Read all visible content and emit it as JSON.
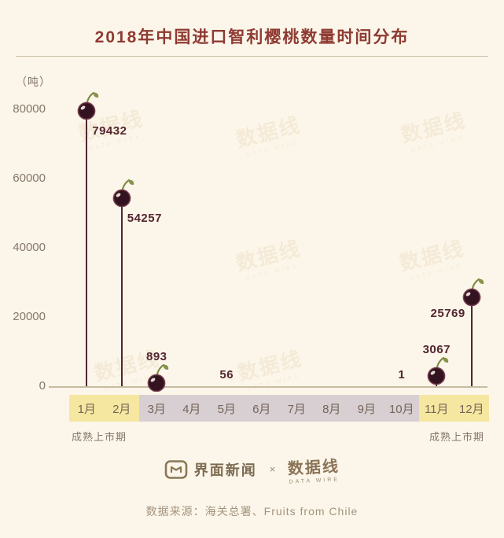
{
  "title": "2018年中国进口智利樱桃数量时间分布",
  "chart_data": {
    "type": "lollipop",
    "title": "2018年中国进口智利樱桃数量时间分布",
    "unit_label": "（吨）",
    "ylabel": "（吨）",
    "ylim": [
      0,
      80000
    ],
    "ytick_values": [
      80000,
      60000,
      40000,
      20000,
      0
    ],
    "categories": [
      "1月",
      "2月",
      "3月",
      "4月",
      "5月",
      "6月",
      "7月",
      "8月",
      "9月",
      "10月",
      "11月",
      "12月"
    ],
    "values": [
      79432,
      54257,
      893,
      null,
      56,
      null,
      null,
      null,
      null,
      1,
      3067,
      25769
    ],
    "points": [
      {
        "month": "1月",
        "value": 79432,
        "label": "79432",
        "cherry": true,
        "label_pos": "right"
      },
      {
        "month": "2月",
        "value": 54257,
        "label": "54257",
        "cherry": true,
        "label_pos": "right"
      },
      {
        "month": "3月",
        "value": 893,
        "label": "893",
        "cherry": true,
        "label_pos": "above"
      },
      {
        "month": "5月",
        "value": 56,
        "label": "56",
        "cherry": false,
        "label_pos": "baseline"
      },
      {
        "month": "10月",
        "value": 1,
        "label": "1",
        "cherry": false,
        "label_pos": "baseline"
      },
      {
        "month": "11月",
        "value": 3067,
        "label": "3067",
        "cherry": true,
        "label_pos": "above"
      },
      {
        "month": "12月",
        "value": 25769,
        "label": "25769",
        "cherry": true,
        "label_pos": "left"
      }
    ],
    "highlight_month_indices": [
      0,
      1,
      10,
      11
    ],
    "season_label_left": "成熟上市期",
    "season_label_right": "成熟上市期",
    "grid": false,
    "legend": false
  },
  "watermark": {
    "text": "数据线",
    "subtext": "DATA WIRE"
  },
  "footer": {
    "brand1": "界面新闻",
    "separator": "×",
    "brand2": "数据线",
    "brand2_sub": "DATA WIRE",
    "source": "数据来源：海关总署、Fruits from Chile"
  },
  "colors": {
    "background": "#FCF6EA",
    "title": "#8E3A32",
    "stem": "#4E2731",
    "value_label": "#54262F",
    "band_highlight": "#F6E7A0",
    "band_normal": "#D8CFD3",
    "axis_text": "#85776A",
    "source_text": "#A3947F"
  }
}
